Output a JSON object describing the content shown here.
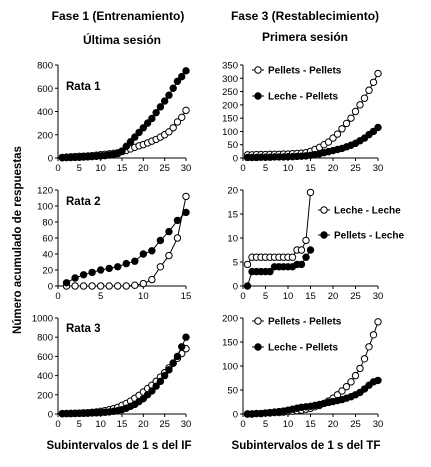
{
  "figure": {
    "left_header": "Fase 1  (Entrenamiento)",
    "left_subheader": "Última sesión",
    "right_header": "Fase 3 (Restablecimiento)",
    "right_subheader": "Primera sesión",
    "ylabel": "Número acumulado de respuestas",
    "xlabel_left": "Subintervalos de 1 s del IF",
    "xlabel_right": "Subintervalos de 1 s del TF"
  },
  "chart_data": [
    {
      "type": "line",
      "column": "Fase 1",
      "row": 1,
      "panel_label": "Rata 1",
      "xlim": [
        0,
        30
      ],
      "xticks": [
        0,
        5,
        10,
        15,
        20,
        25,
        30
      ],
      "ylim": [
        0,
        800
      ],
      "yticks": [
        0,
        200,
        400,
        600,
        800
      ],
      "series": [
        {
          "marker": "open",
          "x": [
            1,
            2,
            3,
            4,
            5,
            6,
            7,
            8,
            9,
            10,
            11,
            12,
            13,
            14,
            15,
            16,
            17,
            18,
            19,
            20,
            21,
            22,
            23,
            24,
            25,
            26,
            27,
            28,
            29,
            30
          ],
          "values": [
            5,
            8,
            10,
            12,
            14,
            16,
            18,
            20,
            24,
            28,
            32,
            36,
            40,
            45,
            55,
            65,
            78,
            92,
            105,
            115,
            130,
            145,
            160,
            180,
            200,
            225,
            260,
            310,
            350,
            410
          ]
        },
        {
          "marker": "filled",
          "x": [
            1,
            2,
            3,
            4,
            5,
            6,
            7,
            8,
            9,
            10,
            11,
            12,
            13,
            14,
            15,
            16,
            17,
            18,
            19,
            20,
            21,
            22,
            23,
            24,
            25,
            26,
            27,
            28,
            29,
            30
          ],
          "values": [
            2,
            3,
            4,
            5,
            6,
            8,
            10,
            12,
            15,
            18,
            20,
            25,
            30,
            38,
            60,
            100,
            140,
            180,
            220,
            260,
            300,
            340,
            390,
            440,
            490,
            540,
            600,
            660,
            700,
            750
          ]
        }
      ]
    },
    {
      "type": "line",
      "column": "Fase 3",
      "row": 1,
      "xlim": [
        0,
        30
      ],
      "xticks": [
        0,
        5,
        10,
        15,
        20,
        25,
        30
      ],
      "ylim": [
        0,
        350
      ],
      "yticks": [
        0,
        50,
        100,
        150,
        200,
        250,
        300,
        350
      ],
      "legend": [
        "Pellets - Pellets",
        "Leche - Pellets"
      ],
      "series": [
        {
          "name": "Pellets - Pellets",
          "marker": "open",
          "x": [
            1,
            2,
            3,
            4,
            5,
            6,
            7,
            8,
            9,
            10,
            11,
            12,
            13,
            14,
            15,
            16,
            17,
            18,
            19,
            20,
            21,
            22,
            23,
            24,
            25,
            26,
            27,
            28,
            29,
            30
          ],
          "values": [
            12,
            12,
            13,
            13,
            13,
            14,
            14,
            14,
            15,
            15,
            16,
            17,
            18,
            20,
            25,
            32,
            40,
            50,
            60,
            75,
            90,
            110,
            130,
            150,
            175,
            200,
            225,
            255,
            285,
            318
          ]
        },
        {
          "name": "Leche - Pellets",
          "marker": "filled",
          "x": [
            1,
            2,
            3,
            4,
            5,
            6,
            7,
            8,
            9,
            10,
            11,
            12,
            13,
            14,
            15,
            16,
            17,
            18,
            19,
            20,
            21,
            22,
            23,
            24,
            25,
            26,
            27,
            28,
            29,
            30
          ],
          "values": [
            2,
            2,
            2,
            3,
            3,
            3,
            4,
            4,
            4,
            5,
            5,
            6,
            7,
            8,
            10,
            13,
            16,
            20,
            24,
            28,
            32,
            36,
            42,
            48,
            55,
            65,
            75,
            88,
            100,
            115
          ]
        }
      ]
    },
    {
      "type": "line",
      "column": "Fase 1",
      "row": 2,
      "panel_label": "Rata 2",
      "xlim": [
        0,
        15
      ],
      "xticks": [
        0,
        5,
        10,
        15
      ],
      "ylim": [
        0,
        120
      ],
      "yticks": [
        0,
        20,
        40,
        60,
        80,
        100,
        120
      ],
      "series": [
        {
          "marker": "open",
          "x": [
            1,
            2,
            3,
            4,
            5,
            6,
            7,
            8,
            9,
            10,
            11,
            12,
            13,
            14,
            15
          ],
          "values": [
            0,
            0,
            0,
            0,
            0,
            0,
            0,
            0,
            1,
            3,
            8,
            24,
            38,
            60,
            112
          ]
        },
        {
          "marker": "filled",
          "x": [
            1,
            2,
            3,
            4,
            5,
            6,
            7,
            8,
            9,
            10,
            11,
            12,
            13,
            14,
            15
          ],
          "values": [
            4,
            10,
            14,
            17,
            20,
            22,
            24,
            28,
            31,
            40,
            44,
            57,
            68,
            82,
            92
          ]
        }
      ]
    },
    {
      "type": "line",
      "column": "Fase 3",
      "row": 2,
      "xlim": [
        0,
        30
      ],
      "xticks": [
        0,
        5,
        10,
        15,
        20,
        25,
        30
      ],
      "ylim": [
        0,
        20
      ],
      "yticks": [
        0,
        5,
        10,
        15,
        20
      ],
      "legend": [
        "Leche - Leche",
        "Pellets - Leche"
      ],
      "series": [
        {
          "name": "Leche - Leche",
          "marker": "open",
          "x": [
            1,
            2,
            3,
            4,
            5,
            6,
            7,
            8,
            9,
            10,
            11,
            12,
            13,
            14,
            15
          ],
          "values": [
            4.5,
            6,
            6,
            6,
            6,
            6,
            6,
            6,
            6,
            6,
            6,
            7.5,
            7.5,
            9.5,
            19.5
          ]
        },
        {
          "name": "Pellets - Leche",
          "marker": "filled",
          "x": [
            1,
            2,
            3,
            4,
            5,
            6,
            7,
            8,
            9,
            10,
            11,
            12,
            13,
            14,
            15
          ],
          "values": [
            0,
            3,
            3,
            3,
            3,
            3,
            4,
            4,
            4,
            4,
            4,
            4.5,
            4.5,
            6,
            7.5
          ]
        }
      ]
    },
    {
      "type": "line",
      "column": "Fase 1",
      "row": 3,
      "panel_label": "Rata 3",
      "xlim": [
        0,
        30
      ],
      "xticks": [
        0,
        5,
        10,
        15,
        20,
        25,
        30
      ],
      "ylim": [
        0,
        1000
      ],
      "yticks": [
        0,
        200,
        400,
        600,
        800,
        1000
      ],
      "series": [
        {
          "marker": "open",
          "x": [
            1,
            2,
            3,
            4,
            5,
            6,
            7,
            8,
            9,
            10,
            11,
            12,
            13,
            14,
            15,
            16,
            17,
            18,
            19,
            20,
            21,
            22,
            23,
            24,
            25,
            26,
            27,
            28,
            29,
            30
          ],
          "values": [
            5,
            6,
            7,
            8,
            10,
            12,
            14,
            18,
            22,
            28,
            35,
            45,
            55,
            70,
            90,
            110,
            135,
            165,
            195,
            230,
            265,
            300,
            340,
            385,
            430,
            480,
            530,
            580,
            630,
            680
          ]
        },
        {
          "marker": "filled",
          "x": [
            1,
            2,
            3,
            4,
            5,
            6,
            7,
            8,
            9,
            10,
            11,
            12,
            13,
            14,
            15,
            16,
            17,
            18,
            19,
            20,
            21,
            22,
            23,
            24,
            25,
            26,
            27,
            28,
            29,
            30
          ],
          "values": [
            2,
            3,
            4,
            5,
            6,
            7,
            8,
            10,
            12,
            15,
            18,
            22,
            28,
            35,
            45,
            60,
            80,
            100,
            130,
            160,
            200,
            240,
            290,
            340,
            400,
            460,
            530,
            600,
            700,
            800
          ]
        }
      ]
    },
    {
      "type": "line",
      "column": "Fase 3",
      "row": 3,
      "xlim": [
        0,
        30
      ],
      "xticks": [
        0,
        5,
        10,
        15,
        20,
        25,
        30
      ],
      "ylim": [
        0,
        200
      ],
      "yticks": [
        0,
        50,
        100,
        150,
        200
      ],
      "legend": [
        "Pellets - Pellets",
        "Leche - Pellets"
      ],
      "series": [
        {
          "name": "Pellets - Pellets",
          "marker": "open",
          "x": [
            1,
            2,
            3,
            4,
            5,
            6,
            7,
            8,
            9,
            10,
            11,
            12,
            13,
            14,
            15,
            16,
            17,
            18,
            19,
            20,
            21,
            22,
            23,
            24,
            25,
            26,
            27,
            28,
            29,
            30
          ],
          "values": [
            0,
            0,
            1,
            1,
            2,
            2,
            3,
            3,
            4,
            5,
            6,
            7,
            8,
            10,
            12,
            15,
            18,
            22,
            27,
            33,
            40,
            48,
            57,
            67,
            80,
            95,
            115,
            140,
            165,
            192
          ]
        },
        {
          "name": "Leche - Pellets",
          "marker": "filled",
          "x": [
            1,
            2,
            3,
            4,
            5,
            6,
            7,
            8,
            9,
            10,
            11,
            12,
            13,
            14,
            15,
            16,
            17,
            18,
            19,
            20,
            21,
            22,
            23,
            24,
            25,
            26,
            27,
            28,
            29,
            30
          ],
          "values": [
            0,
            0,
            1,
            1,
            2,
            3,
            4,
            5,
            6,
            8,
            10,
            12,
            14,
            15,
            16,
            18,
            20,
            22,
            24,
            26,
            28,
            30,
            33,
            36,
            40,
            45,
            52,
            60,
            67,
            70
          ]
        }
      ]
    }
  ]
}
